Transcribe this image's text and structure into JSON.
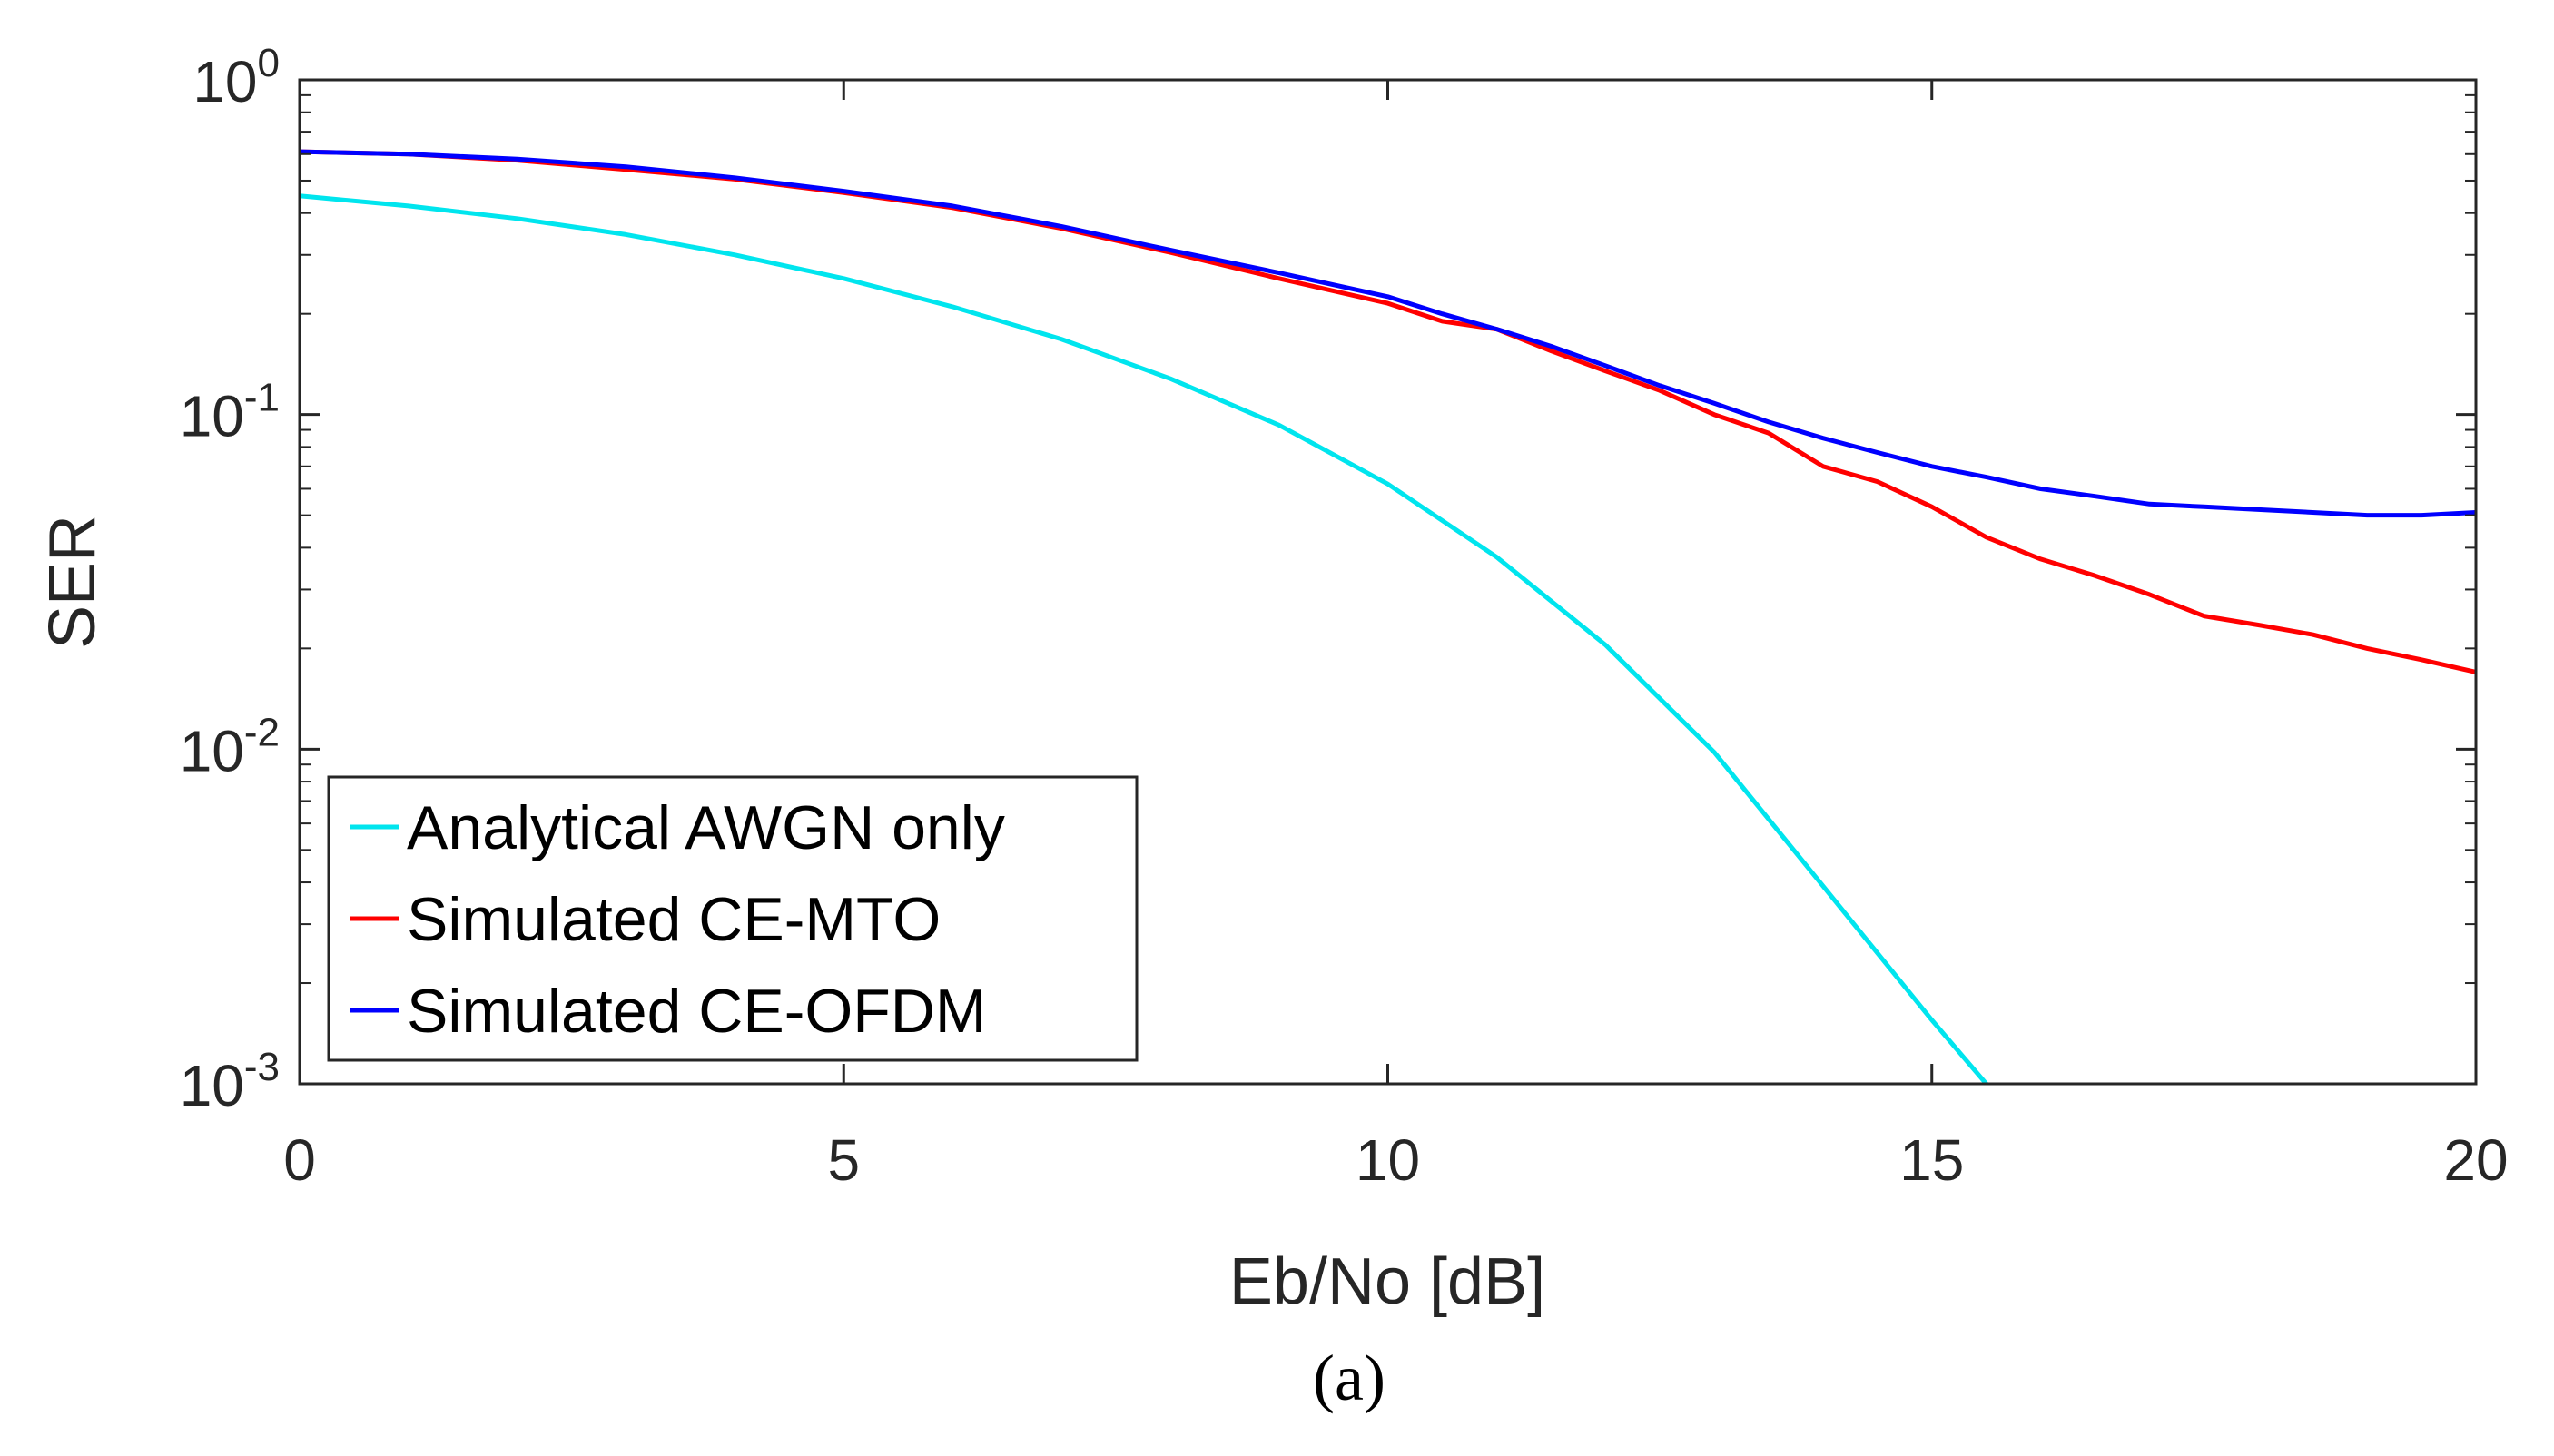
{
  "caption": "(a)",
  "colors": {
    "awgn": "#00e5ee",
    "mto": "#ff0000",
    "ofdm": "#0000ff",
    "axis": "#262626"
  },
  "chart_data": {
    "type": "line",
    "xlabel": "Eb/No [dB]",
    "ylabel": "SER",
    "xlim": [
      0,
      20
    ],
    "ylim": [
      0.001,
      1
    ],
    "yscale": "log",
    "grid": false,
    "legend_position": "bottom-left",
    "xticks": [
      "0",
      "5",
      "10",
      "15",
      "20"
    ],
    "yticks": [
      {
        "base": "10",
        "exp": "0"
      },
      {
        "base": "10",
        "exp": "-1"
      },
      {
        "base": "10",
        "exp": "-2"
      },
      {
        "base": "10",
        "exp": "-3"
      }
    ],
    "series": [
      {
        "name": "Analytical AWGN only",
        "x": [
          0,
          1,
          2,
          3,
          4,
          5,
          6,
          7,
          8,
          9,
          10,
          11,
          12,
          13,
          14,
          15,
          15.5
        ],
        "y": [
          0.45,
          0.42,
          0.385,
          0.345,
          0.3,
          0.255,
          0.21,
          0.168,
          0.128,
          0.093,
          0.062,
          0.0375,
          0.0205,
          0.0098,
          0.0039,
          0.00155,
          0.001
        ]
      },
      {
        "name": "Simulated CE-MTO",
        "x": [
          0,
          1,
          2,
          3,
          4,
          5,
          6,
          7,
          8,
          9,
          10,
          10.5,
          11,
          11.5,
          12,
          12.5,
          13,
          13.5,
          14,
          14.5,
          15,
          15.5,
          16,
          16.5,
          17,
          17.5,
          18,
          18.5,
          19,
          19.5,
          20
        ],
        "y": [
          0.61,
          0.6,
          0.575,
          0.54,
          0.505,
          0.46,
          0.415,
          0.36,
          0.305,
          0.255,
          0.215,
          0.19,
          0.18,
          0.155,
          0.135,
          0.118,
          0.1,
          0.088,
          0.07,
          0.063,
          0.053,
          0.043,
          0.037,
          0.033,
          0.029,
          0.025,
          0.0235,
          0.022,
          0.02,
          0.0185,
          0.017
        ]
      },
      {
        "name": "Simulated CE-OFDM",
        "x": [
          0,
          1,
          2,
          3,
          4,
          5,
          6,
          7,
          8,
          9,
          10,
          10.5,
          11,
          11.5,
          12,
          12.5,
          13,
          13.5,
          14,
          14.5,
          15,
          15.5,
          16,
          16.5,
          17,
          17.5,
          18,
          18.5,
          19,
          19.5,
          20
        ],
        "y": [
          0.61,
          0.6,
          0.58,
          0.55,
          0.51,
          0.465,
          0.42,
          0.365,
          0.31,
          0.265,
          0.225,
          0.2,
          0.18,
          0.16,
          0.14,
          0.122,
          0.108,
          0.095,
          0.085,
          0.077,
          0.07,
          0.065,
          0.06,
          0.057,
          0.054,
          0.053,
          0.052,
          0.051,
          0.05,
          0.05,
          0.051
        ]
      }
    ]
  }
}
